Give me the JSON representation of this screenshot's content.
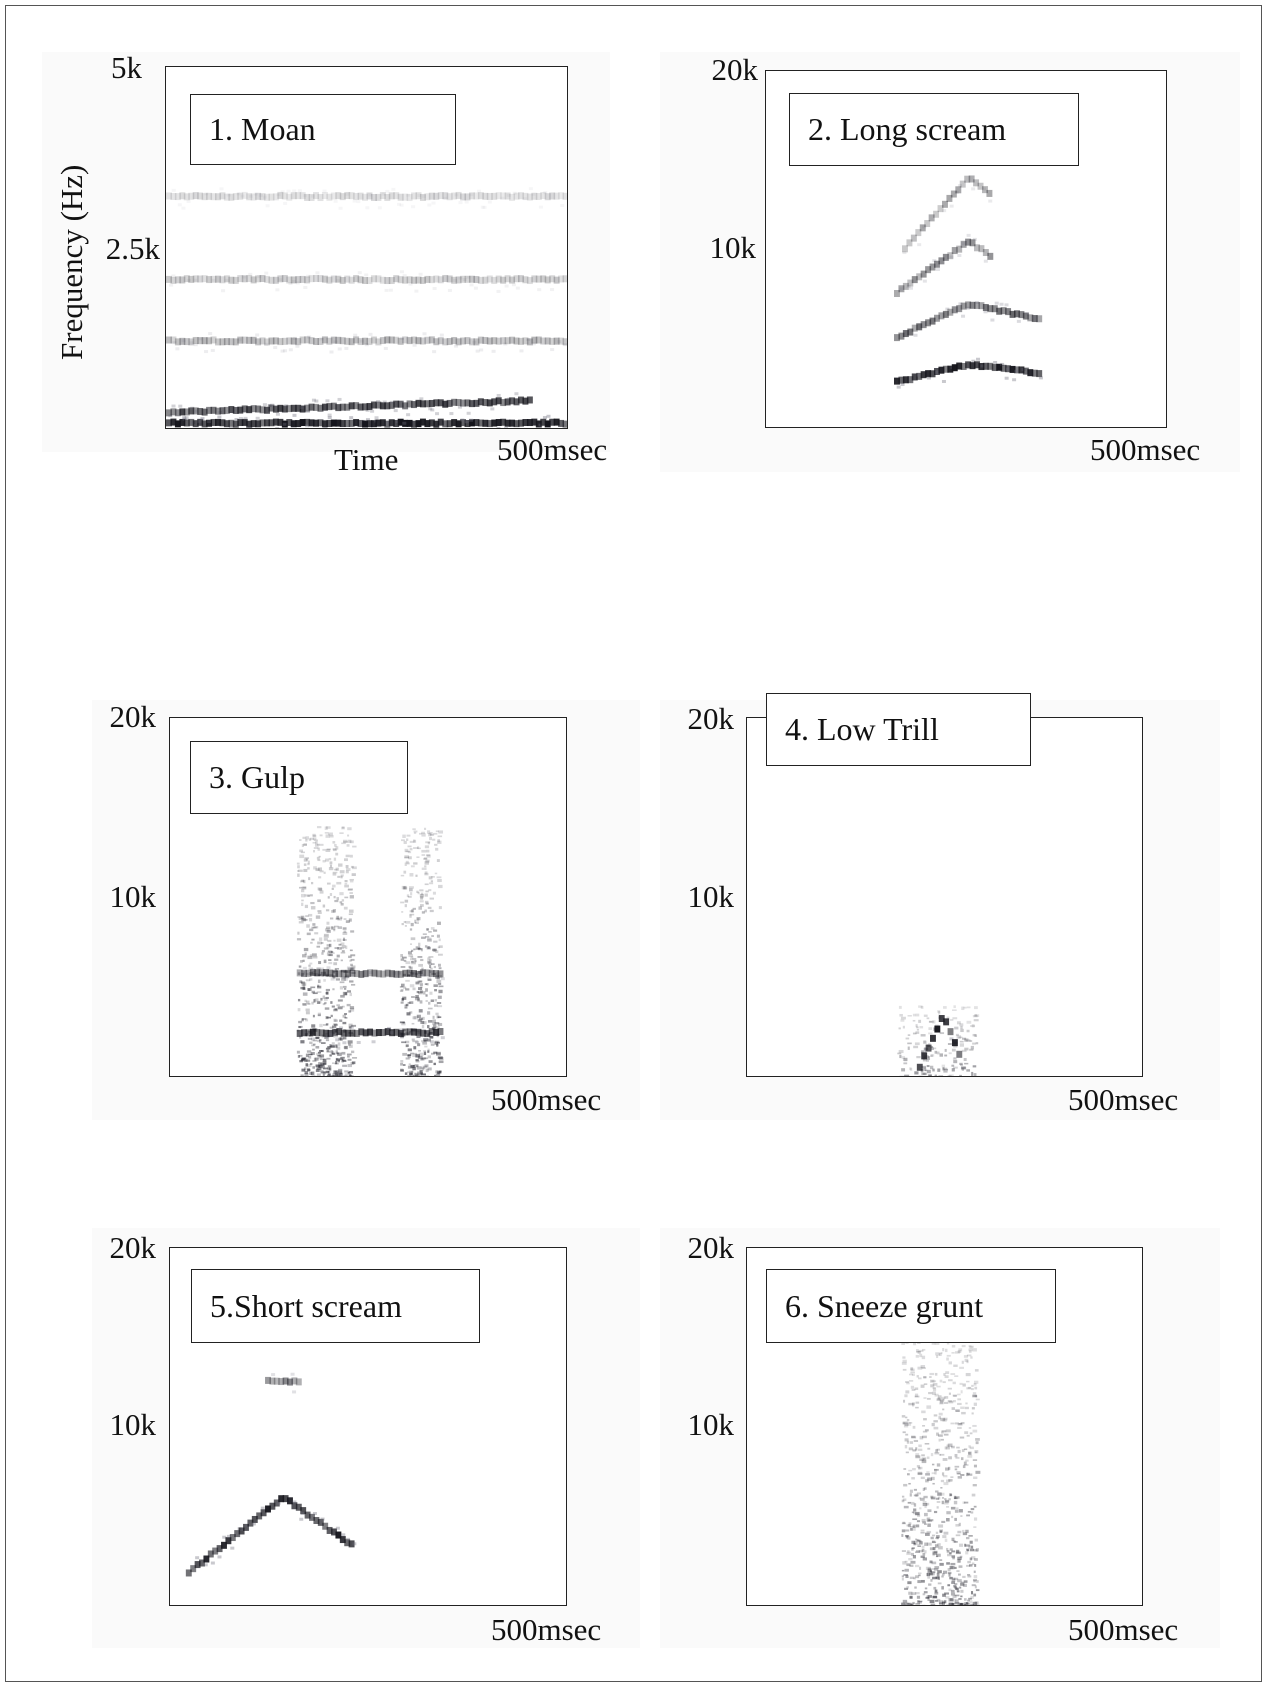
{
  "chart_data": [
    {
      "type": "heatmap",
      "title": "1. Moan",
      "xlabel": "Time",
      "ylabel": "Frequency (Hz)",
      "x_tick_label": "500msec",
      "y_tick_labels": [
        "5k",
        "2.5k"
      ],
      "xlim_ms": [
        0,
        500
      ],
      "ylim_hz": [
        0,
        5000
      ],
      "tracks": [
        {
          "t_ms": [
            0,
            500
          ],
          "f_hz": [
            60,
            60
          ],
          "intensity": 0.95
        },
        {
          "t_ms": [
            0,
            450
          ],
          "f_hz": [
            210,
            370
          ],
          "intensity": 0.75
        },
        {
          "t_ms": [
            0,
            500
          ],
          "f_hz": [
            1200,
            1200
          ],
          "intensity": 0.3
        },
        {
          "t_ms": [
            0,
            500
          ],
          "f_hz": [
            2050,
            2050
          ],
          "intensity": 0.22
        },
        {
          "t_ms": [
            0,
            500
          ],
          "f_hz": [
            3200,
            3200
          ],
          "intensity": 0.15
        }
      ]
    },
    {
      "type": "heatmap",
      "title": "2. Long scream",
      "x_tick_label": "500msec",
      "y_tick_labels": [
        "20k",
        "10k"
      ],
      "xlim_ms": [
        0,
        500
      ],
      "ylim_hz": [
        0,
        20000
      ],
      "tracks": [
        {
          "t_ms": [
            160,
            250,
            340
          ],
          "f_hz": [
            2500,
            3500,
            3000
          ],
          "intensity": 0.9
        },
        {
          "t_ms": [
            160,
            250,
            340
          ],
          "f_hz": [
            5000,
            6900,
            6000
          ],
          "intensity": 0.6
        },
        {
          "t_ms": [
            160,
            250,
            280
          ],
          "f_hz": [
            7500,
            10400,
            9500
          ],
          "intensity": 0.45
        },
        {
          "t_ms": [
            170,
            250,
            280
          ],
          "f_hz": [
            10000,
            14000,
            13000
          ],
          "intensity": 0.35
        }
      ]
    },
    {
      "type": "heatmap",
      "title": "3. Gulp",
      "x_tick_label": "500msec",
      "y_tick_labels": [
        "20k",
        "10k"
      ],
      "xlim_ms": [
        0,
        500
      ],
      "ylim_hz": [
        0,
        20000
      ],
      "bursts": [
        {
          "t_ms": [
            160,
            230
          ],
          "f_hz": [
            0,
            14000
          ],
          "intensity": 0.7
        },
        {
          "t_ms": [
            290,
            340
          ],
          "f_hz": [
            0,
            14000
          ],
          "intensity": 0.7
        }
      ],
      "tracks": [
        {
          "t_ms": [
            160,
            340
          ],
          "f_hz": [
            2400,
            2400
          ],
          "intensity": 0.8
        },
        {
          "t_ms": [
            160,
            340
          ],
          "f_hz": [
            5700,
            5700
          ],
          "intensity": 0.55
        }
      ]
    },
    {
      "type": "heatmap",
      "title": "4. Low Trill",
      "x_tick_label": "500msec",
      "y_tick_labels": [
        "20k",
        "10k"
      ],
      "xlim_ms": [
        0,
        500
      ],
      "ylim_hz": [
        0,
        20000
      ],
      "bursts": [
        {
          "t_ms": [
            190,
            290
          ],
          "f_hz": [
            0,
            4000
          ],
          "intensity": 0.5
        }
      ],
      "tracks": [
        {
          "t_ms": [
            215,
            245,
            270
          ],
          "f_hz": [
            500,
            3400,
            600
          ],
          "intensity": 0.9
        }
      ]
    },
    {
      "type": "heatmap",
      "title": "5.Short scream",
      "x_tick_label": "500msec",
      "y_tick_labels": [
        "20k",
        "10k"
      ],
      "xlim_ms": [
        0,
        500
      ],
      "ylim_hz": [
        0,
        20000
      ],
      "tracks": [
        {
          "t_ms": [
            20,
            140,
            230
          ],
          "f_hz": [
            1800,
            6000,
            3200
          ],
          "intensity": 0.9
        },
        {
          "t_ms": [
            120,
            160
          ],
          "f_hz": [
            12500,
            12500
          ],
          "intensity": 0.5
        }
      ]
    },
    {
      "type": "heatmap",
      "title": "6. Sneeze grunt",
      "x_tick_label": "500msec",
      "y_tick_labels": [
        "20k",
        "10k"
      ],
      "xlim_ms": [
        0,
        500
      ],
      "ylim_hz": [
        0,
        20000
      ],
      "bursts": [
        {
          "t_ms": [
            195,
            290
          ],
          "f_hz": [
            0,
            15000
          ],
          "intensity": 0.6
        }
      ]
    }
  ]
}
